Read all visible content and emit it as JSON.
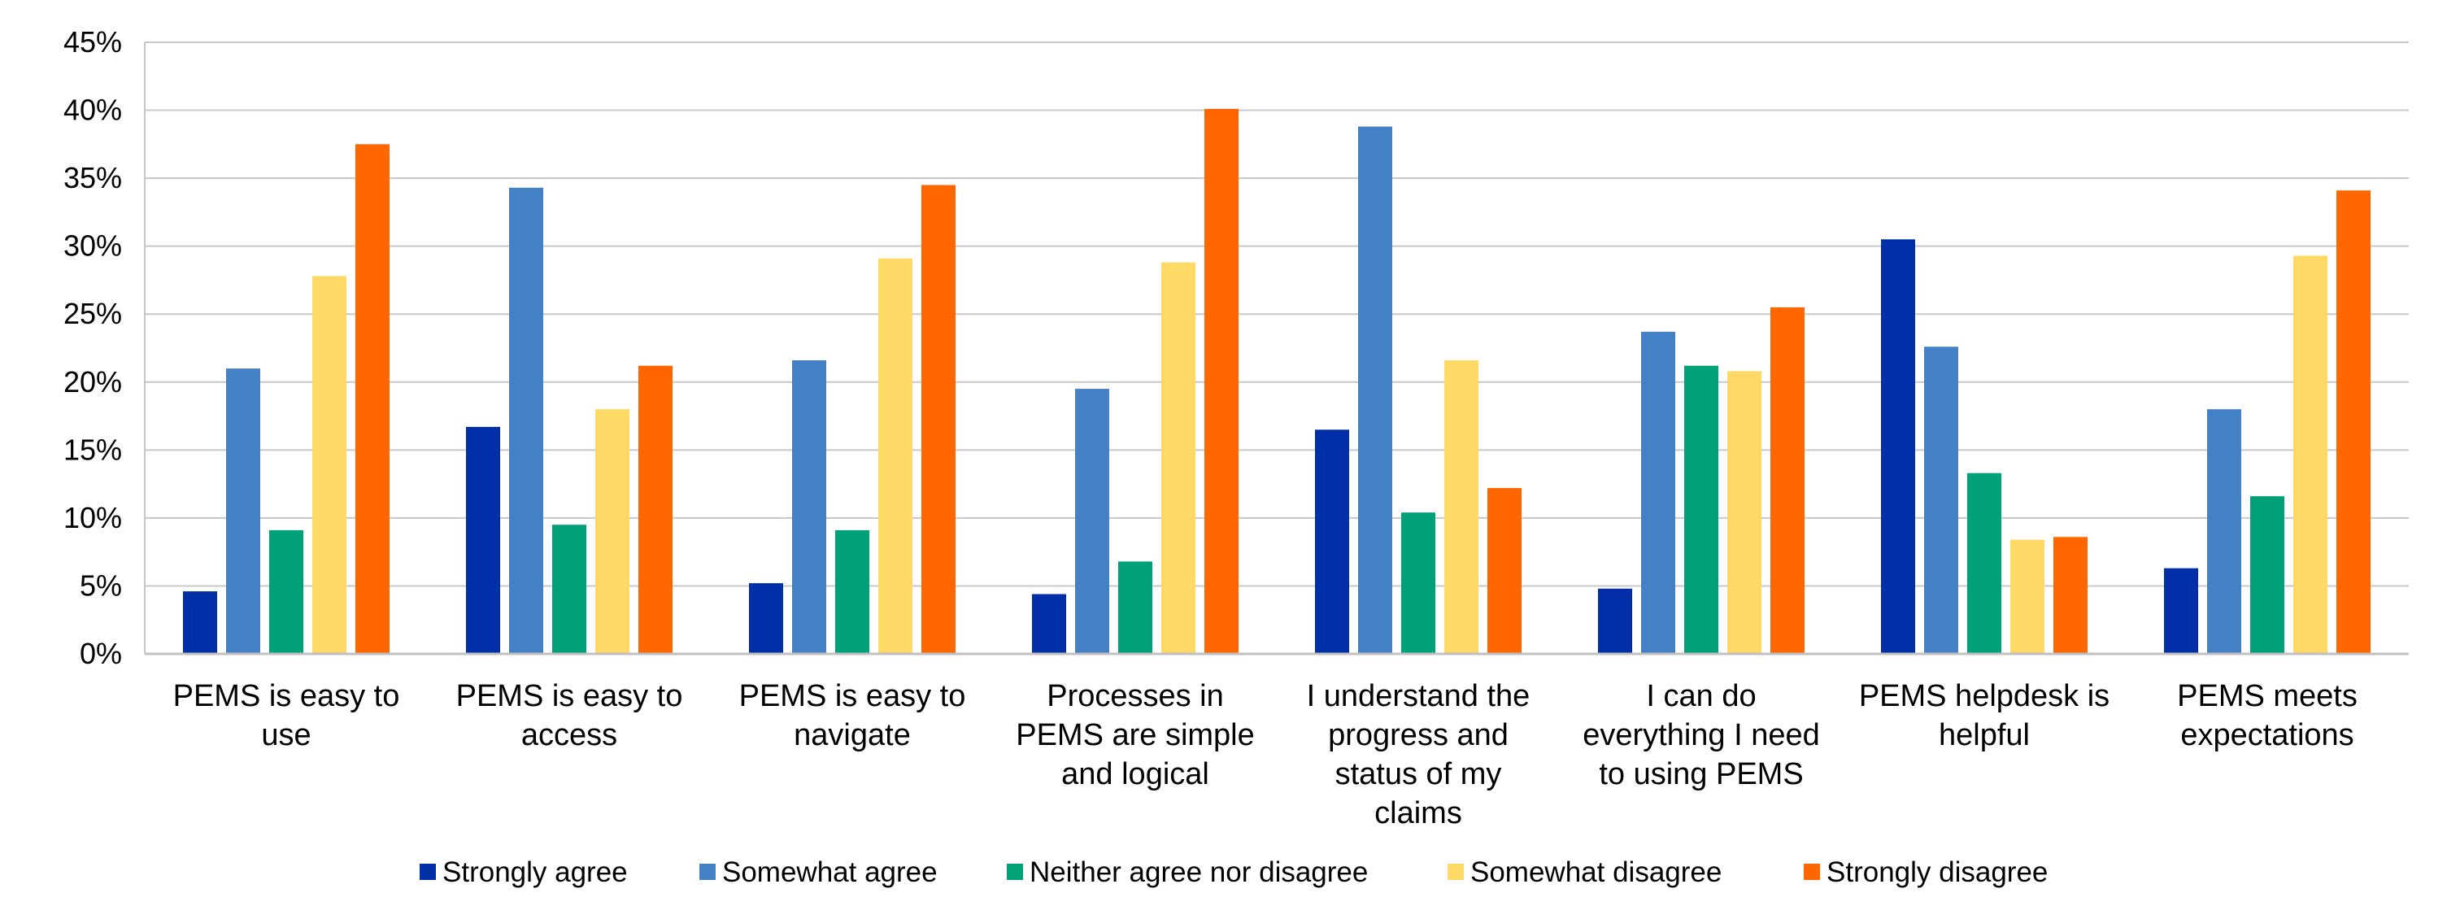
{
  "chart_data": {
    "type": "bar",
    "title": "",
    "xlabel": "",
    "ylabel": "",
    "ylim": [
      0,
      45
    ],
    "ytick_step": 5,
    "ytick_suffix": "%",
    "grid": true,
    "legend_position": "bottom",
    "categories": [
      [
        "PEMS is easy to",
        "use"
      ],
      [
        "PEMS is easy to",
        "access"
      ],
      [
        "PEMS is easy to",
        "navigate"
      ],
      [
        "Processes in",
        "PEMS are simple",
        "and logical"
      ],
      [
        "I understand the",
        "progress and",
        "status of my",
        "claims"
      ],
      [
        "I can do",
        "everything I need",
        "to using PEMS"
      ],
      [
        "PEMS helpdesk is",
        "helpful"
      ],
      [
        "PEMS meets",
        "expectations"
      ]
    ],
    "series": [
      {
        "name": "Strongly agree",
        "color": "#002FA7",
        "values": [
          4.6,
          16.7,
          5.2,
          4.4,
          16.5,
          4.8,
          30.5,
          6.3
        ]
      },
      {
        "name": "Somewhat agree",
        "color": "#4480C6",
        "values": [
          21.0,
          34.3,
          21.6,
          19.5,
          38.8,
          23.7,
          22.6,
          18.0
        ]
      },
      {
        "name": "Neither agree nor disagree",
        "color": "#00A078",
        "values": [
          9.1,
          9.5,
          9.1,
          6.8,
          10.4,
          21.2,
          13.3,
          11.6
        ]
      },
      {
        "name": "Somewhat disagree",
        "color": "#FFD966",
        "values": [
          27.8,
          18.0,
          29.1,
          28.8,
          21.6,
          20.8,
          8.4,
          29.3
        ]
      },
      {
        "name": "Strongly disagree",
        "color": "#FF6600",
        "values": [
          37.5,
          21.2,
          34.5,
          40.1,
          12.2,
          25.5,
          8.6,
          34.1
        ]
      }
    ]
  }
}
